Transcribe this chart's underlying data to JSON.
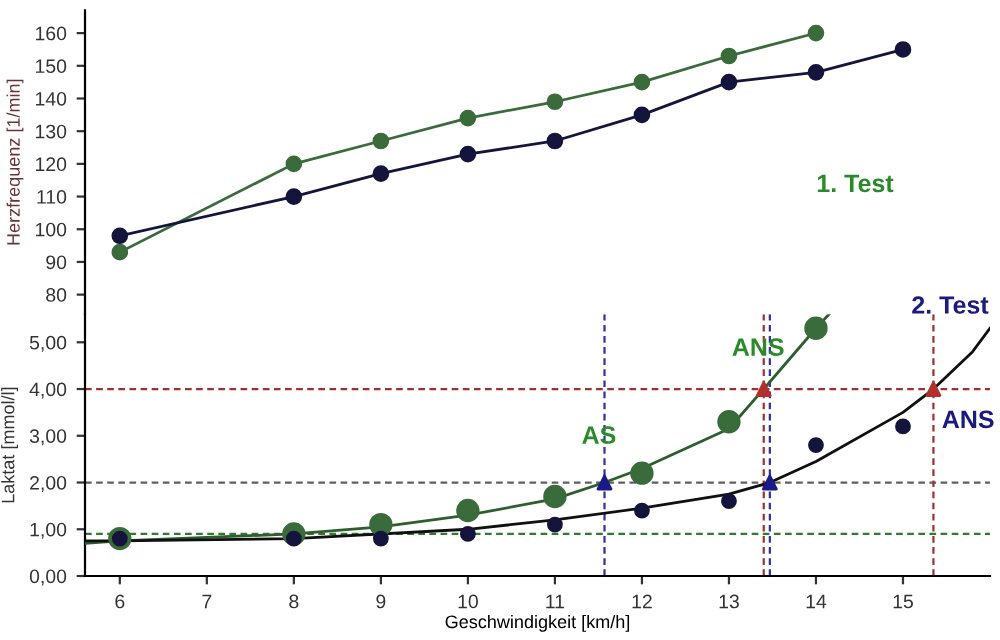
{
  "chart_data": [
    {
      "type": "line",
      "ylabel": "Herzfrequenz [1/min]",
      "x": [
        6,
        8,
        9,
        10,
        11,
        12,
        13,
        14,
        15
      ],
      "xlim": [
        5.6,
        16
      ],
      "ylim": [
        74,
        167
      ],
      "yticks": [
        80,
        90,
        100,
        110,
        120,
        130,
        140,
        150,
        160
      ],
      "tick_labels": "y",
      "marker": "circle",
      "grid": false,
      "legend": false,
      "series": [
        {
          "color": "#3a6b3a",
          "x": [
            6,
            8,
            9,
            10,
            11,
            12,
            13,
            14
          ],
          "values": [
            93,
            120,
            127,
            134,
            139,
            145,
            153,
            160
          ]
        },
        {
          "color": "#14143c",
          "values": [
            98,
            110,
            117,
            123,
            127,
            135,
            145,
            148,
            155
          ]
        }
      ]
    },
    {
      "type": "scatter",
      "xlabel": "Geschwindigkeit [km/h]",
      "ylabel": "Laktat [mmol/l]",
      "xlim": [
        5.6,
        16
      ],
      "ylim": [
        0,
        5.6
      ],
      "xticks": [
        6,
        7,
        8,
        9,
        10,
        11,
        12,
        13,
        14,
        15
      ],
      "yticks": [
        {
          "value": 0,
          "label": "0,00"
        },
        {
          "value": 1,
          "label": "1,00"
        },
        {
          "value": 2,
          "label": "2,00"
        },
        {
          "value": 3,
          "label": "3,00"
        },
        {
          "value": 4,
          "label": "4,00"
        },
        {
          "value": 5,
          "label": "5,00"
        }
      ],
      "marker": "circle",
      "grid": false,
      "legend": false,
      "series": [
        {
          "color": "#3a6b3a",
          "x": [
            6,
            8,
            9,
            10,
            11,
            12,
            13,
            14
          ],
          "values": [
            0.8,
            0.9,
            1.1,
            1.4,
            1.7,
            2.2,
            3.3,
            5.3
          ]
        },
        {
          "color": "#14143c",
          "x": [
            6,
            8,
            9,
            10,
            11,
            12,
            13,
            14,
            15
          ],
          "values": [
            0.8,
            0.8,
            0.8,
            0.9,
            1.1,
            1.4,
            1.6,
            2.8,
            3.2
          ]
        },
        {
          "type": "line",
          "color": "#2e5e2e",
          "marker": "none",
          "x": [
            5.6,
            6,
            8,
            9,
            10,
            11,
            11.57,
            12,
            13,
            13.4,
            14,
            14.15
          ],
          "values": [
            0.7,
            0.75,
            0.9,
            1.05,
            1.3,
            1.65,
            2,
            2.3,
            3.15,
            4,
            5.3,
            5.6
          ]
        },
        {
          "type": "line",
          "color": "#101010",
          "marker": "none",
          "x": [
            5.6,
            6,
            8,
            10,
            11,
            12,
            13,
            13.47,
            14,
            15,
            15.35,
            15.8,
            16
          ],
          "values": [
            0.75,
            0.75,
            0.8,
            1.0,
            1.2,
            1.45,
            1.75,
            2,
            2.45,
            3.5,
            4,
            4.8,
            5.3
          ]
        },
        {
          "color": "#1a1a8a",
          "marker": "triangle",
          "x": [
            11.57,
            13.47
          ],
          "values": [
            2,
            2
          ]
        },
        {
          "color": "#b03030",
          "marker": "triangle",
          "x": [
            13.4,
            15.35
          ],
          "values": [
            4,
            4
          ]
        }
      ],
      "ref_lines": [
        {
          "axis": "y",
          "value": 0.9,
          "color": "#2e7d2e",
          "line_style": "dashed"
        },
        {
          "axis": "y",
          "value": 2,
          "color": "#606060",
          "line_style": "dashed"
        },
        {
          "axis": "y",
          "value": 4,
          "color": "#a03030",
          "line_style": "dashed"
        },
        {
          "axis": "x",
          "value": 11.57,
          "color": "#3030a0",
          "line_style": "dashed"
        },
        {
          "axis": "x",
          "value": 13.4,
          "color": "#a03030",
          "line_style": "dashed"
        },
        {
          "axis": "x",
          "value": 13.47,
          "color": "#3030a0",
          "line_style": "dashed"
        },
        {
          "axis": "x",
          "value": 15.35,
          "color": "#a03030",
          "line_style": "dashed"
        }
      ],
      "annotations": [
        {
          "text": "AS",
          "x": 11.57,
          "y": 2
        },
        {
          "text": "ANS",
          "x": 13.4,
          "y": 4
        },
        {
          "text": "ANS",
          "x": 15.35,
          "y": 4
        },
        "1. Test",
        "2. Test"
      ]
    }
  ]
}
